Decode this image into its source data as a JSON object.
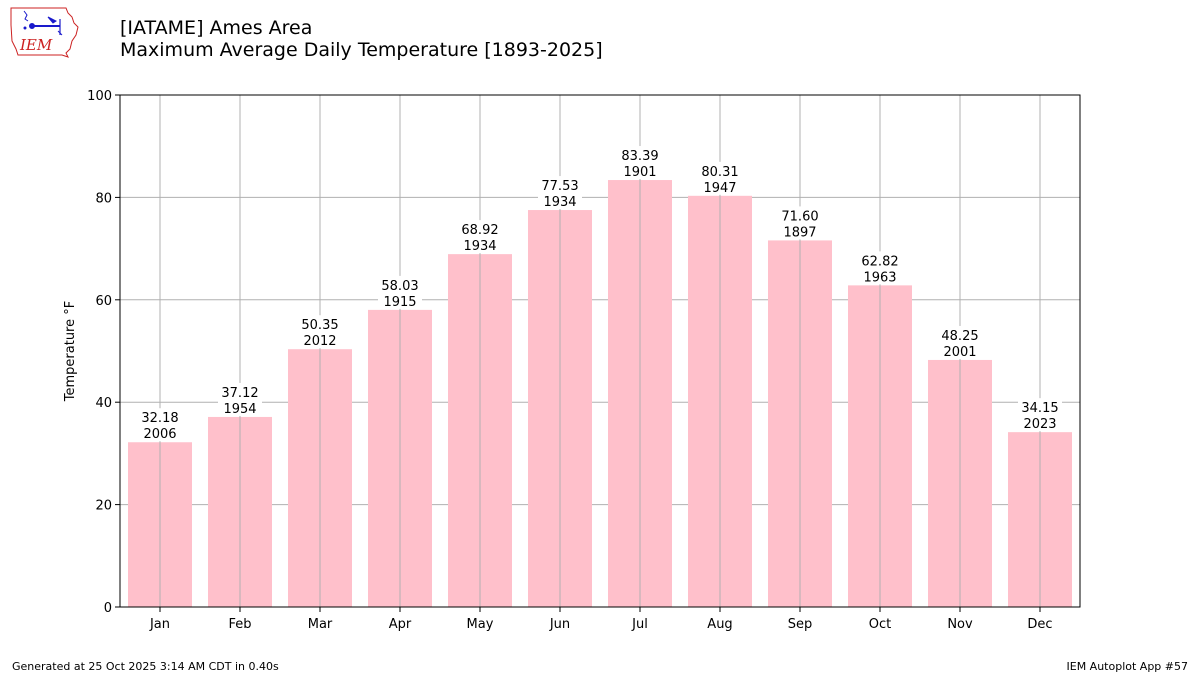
{
  "header": {
    "logo_text": "IEM",
    "title_line1": "[IATAME] Ames Area",
    "title_line2": "Maximum Average Daily Temperature [1893-2025]"
  },
  "footer": {
    "generated": "Generated at 25 Oct 2025 3:14 AM CDT in 0.40s",
    "app": "IEM Autoplot App #57"
  },
  "colors": {
    "bar": "#ffc0cb",
    "grid": "#b0b0b0",
    "axis": "#000000",
    "logo_red": "#cc2222",
    "logo_blue": "#1a1acc"
  },
  "chart_data": {
    "type": "bar",
    "title": "Maximum Average Daily Temperature [1893-2025]",
    "xlabel": "",
    "ylabel": "Temperature °F",
    "ylim": [
      0,
      100
    ],
    "yticks": [
      0,
      20,
      40,
      60,
      80,
      100
    ],
    "grid": true,
    "categories": [
      "Jan",
      "Feb",
      "Mar",
      "Apr",
      "May",
      "Jun",
      "Jul",
      "Aug",
      "Sep",
      "Oct",
      "Nov",
      "Dec"
    ],
    "values": [
      32.18,
      37.12,
      50.35,
      58.03,
      68.92,
      77.53,
      83.39,
      80.31,
      71.6,
      62.82,
      48.25,
      34.15
    ],
    "value_labels": [
      "32.18",
      "37.12",
      "50.35",
      "58.03",
      "68.92",
      "77.53",
      "83.39",
      "80.31",
      "71.60",
      "62.82",
      "48.25",
      "34.15"
    ],
    "years": [
      "2006",
      "1954",
      "2012",
      "1915",
      "1934",
      "1934",
      "1901",
      "1947",
      "1897",
      "1963",
      "2001",
      "2023"
    ]
  }
}
